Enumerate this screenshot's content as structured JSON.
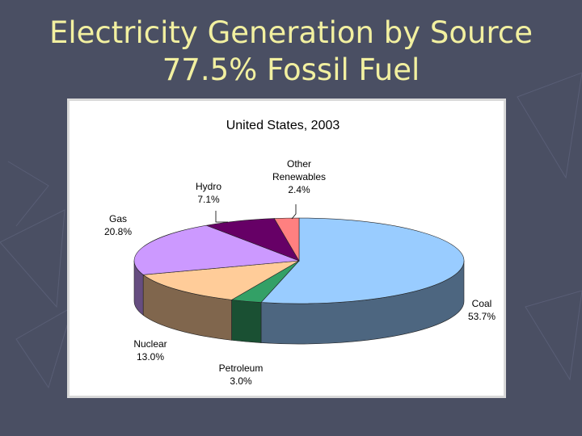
{
  "slide": {
    "title_line1": "Electricity Generation by Source",
    "title_line2": "77.5% Fossil Fuel"
  },
  "colors": {
    "background": "#4a4f63",
    "title_text": "#f2f0a0",
    "coal": "#99ccff",
    "petroleum": "#33a066",
    "nuclear": "#ffcc99",
    "gas": "#cc99ff",
    "hydro": "#660066",
    "other_renewables": "#ff8080"
  },
  "chart_data": {
    "type": "pie",
    "title": "United States, 2003",
    "slices": [
      {
        "label": "Coal",
        "value": 53.7,
        "value_label": "53.7%",
        "color": "#99ccff"
      },
      {
        "label": "Petroleum",
        "value": 3.0,
        "value_label": "3.0%",
        "color": "#33a066"
      },
      {
        "label": "Nuclear",
        "value": 13.0,
        "value_label": "13.0%",
        "color": "#ffcc99"
      },
      {
        "label": "Gas",
        "value": 20.8,
        "value_label": "20.8%",
        "color": "#cc99ff"
      },
      {
        "label": "Hydro",
        "value": 7.1,
        "value_label": "7.1%",
        "color": "#660066"
      },
      {
        "label": "Other Renewables",
        "value": 2.4,
        "value_label": "2.4%",
        "color": "#ff8080"
      }
    ],
    "three_d": true,
    "legend": "none"
  }
}
